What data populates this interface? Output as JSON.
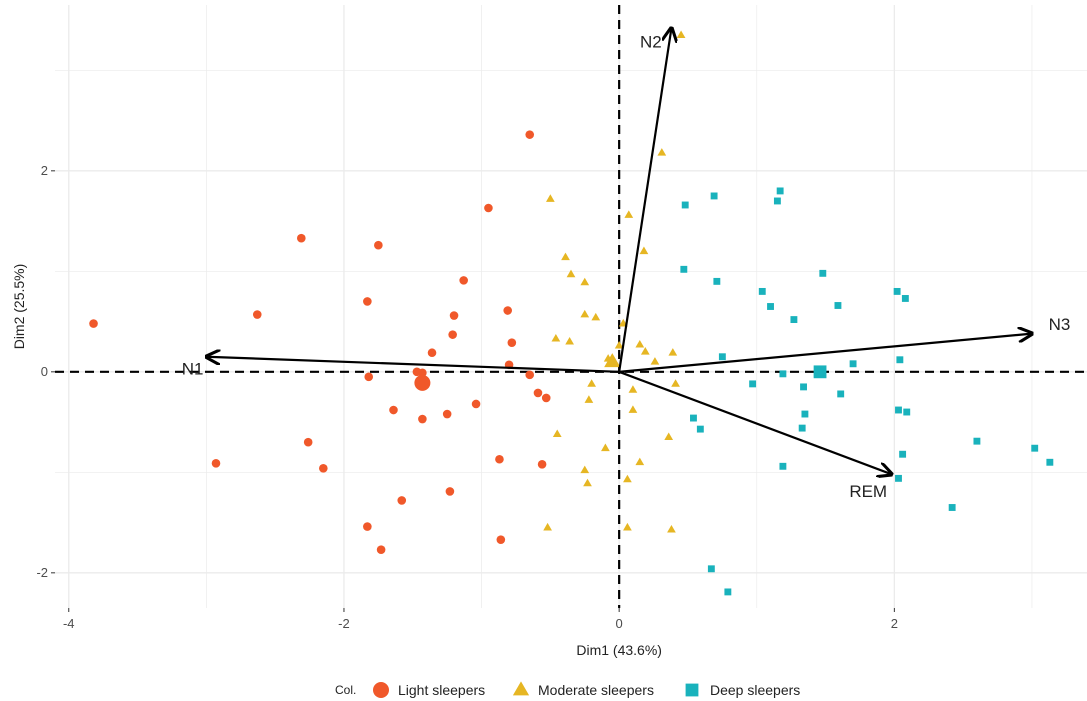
{
  "chart_data": {
    "type": "scatter",
    "subtype": "pca-biplot",
    "xlabel": "Dim1 (43.6%)",
    "ylabel": "Dim2 (25.5%)",
    "xlim": [
      -4.1,
      3.4
    ],
    "ylim": [
      -2.35,
      3.65
    ],
    "x_ticks": [
      -4,
      -2,
      0,
      2
    ],
    "x_tick_labels": [
      "-4",
      "-2",
      "0",
      "2"
    ],
    "y_ticks": [
      -2,
      0,
      2
    ],
    "y_tick_labels": [
      "-2",
      "0",
      "2"
    ],
    "grid": true,
    "reference_lines": {
      "x": 0,
      "y": 0,
      "style": "dashed"
    },
    "legend": {
      "title": "Col.",
      "position": "bottom",
      "entries": [
        "Light sleepers",
        "Moderate sleepers",
        "Deep sleepers"
      ]
    },
    "variables": [
      {
        "name": "N1",
        "x": -3.0,
        "y": 0.15,
        "label_x": -3.1,
        "label_y": 0.02
      },
      {
        "name": "N2",
        "x": 0.38,
        "y": 3.42,
        "label_x": 0.23,
        "label_y": 3.27
      },
      {
        "name": "N3",
        "x": 3.0,
        "y": 0.38,
        "label_x": 3.2,
        "label_y": 0.46
      },
      {
        "name": "REM",
        "x": 1.98,
        "y": -1.02,
        "label_x": 1.81,
        "label_y": -1.2
      }
    ],
    "series": [
      {
        "name": "Light sleepers",
        "color": "#f0582a",
        "shape": "circle",
        "centroid": [
          -1.43,
          -0.11
        ],
        "points": [
          [
            -3.82,
            0.48
          ],
          [
            -2.63,
            0.57
          ],
          [
            -2.31,
            1.33
          ],
          [
            -1.75,
            1.26
          ],
          [
            -1.83,
            0.7
          ],
          [
            -0.95,
            1.63
          ],
          [
            -0.65,
            2.36
          ],
          [
            -1.13,
            0.91
          ],
          [
            -1.2,
            0.56
          ],
          [
            -1.21,
            0.37
          ],
          [
            -0.81,
            0.61
          ],
          [
            -0.78,
            0.29
          ],
          [
            -1.36,
            0.19
          ],
          [
            -0.8,
            0.07
          ],
          [
            -1.47,
            0.0
          ],
          [
            -1.43,
            -0.01
          ],
          [
            -1.82,
            -0.05
          ],
          [
            -0.65,
            -0.03
          ],
          [
            -1.64,
            -0.38
          ],
          [
            -1.04,
            -0.32
          ],
          [
            -1.25,
            -0.42
          ],
          [
            -1.43,
            -0.47
          ],
          [
            -0.59,
            -0.21
          ],
          [
            -0.53,
            -0.26
          ],
          [
            -2.26,
            -0.7
          ],
          [
            -2.15,
            -0.96
          ],
          [
            -2.93,
            -0.91
          ],
          [
            -0.87,
            -0.87
          ],
          [
            -0.56,
            -0.92
          ],
          [
            -1.58,
            -1.28
          ],
          [
            -1.23,
            -1.19
          ],
          [
            -1.83,
            -1.54
          ],
          [
            -1.73,
            -1.77
          ],
          [
            -0.86,
            -1.67
          ]
        ]
      },
      {
        "name": "Moderate sleepers",
        "color": "#e6b623",
        "shape": "triangle",
        "centroid": [
          -0.05,
          0.1
        ],
        "points": [
          [
            0.45,
            3.35
          ],
          [
            0.31,
            2.18
          ],
          [
            -0.5,
            1.72
          ],
          [
            0.07,
            1.56
          ],
          [
            0.18,
            1.2
          ],
          [
            -0.39,
            1.14
          ],
          [
            -0.35,
            0.97
          ],
          [
            -0.25,
            0.89
          ],
          [
            -0.25,
            0.57
          ],
          [
            -0.17,
            0.54
          ],
          [
            0.03,
            0.48
          ],
          [
            -0.46,
            0.33
          ],
          [
            -0.36,
            0.3
          ],
          [
            0.15,
            0.27
          ],
          [
            0.19,
            0.2
          ],
          [
            0.39,
            0.19
          ],
          [
            0.0,
            0.26
          ],
          [
            -0.08,
            0.13
          ],
          [
            0.26,
            0.1
          ],
          [
            0.41,
            -0.12
          ],
          [
            -0.2,
            -0.12
          ],
          [
            -0.22,
            -0.28
          ],
          [
            0.1,
            -0.18
          ],
          [
            0.1,
            -0.38
          ],
          [
            -0.45,
            -0.62
          ],
          [
            0.36,
            -0.65
          ],
          [
            -0.1,
            -0.76
          ],
          [
            0.15,
            -0.9
          ],
          [
            -0.25,
            -0.98
          ],
          [
            -0.23,
            -1.11
          ],
          [
            0.06,
            -1.07
          ],
          [
            0.06,
            -1.55
          ],
          [
            -0.52,
            -1.55
          ],
          [
            0.38,
            -1.57
          ]
        ]
      },
      {
        "name": "Deep sleepers",
        "color": "#19b2bc",
        "shape": "square",
        "centroid": [
          1.46,
          0.0
        ],
        "points": [
          [
            0.48,
            1.66
          ],
          [
            0.69,
            1.75
          ],
          [
            1.17,
            1.8
          ],
          [
            1.15,
            1.7
          ],
          [
            0.47,
            1.02
          ],
          [
            0.71,
            0.9
          ],
          [
            1.04,
            0.8
          ],
          [
            1.1,
            0.65
          ],
          [
            1.48,
            0.98
          ],
          [
            1.59,
            0.66
          ],
          [
            1.27,
            0.52
          ],
          [
            2.02,
            0.8
          ],
          [
            2.08,
            0.73
          ],
          [
            0.75,
            0.15
          ],
          [
            1.7,
            0.08
          ],
          [
            2.04,
            0.12
          ],
          [
            1.19,
            -0.02
          ],
          [
            1.44,
            -0.02
          ],
          [
            0.97,
            -0.12
          ],
          [
            1.34,
            -0.15
          ],
          [
            1.61,
            -0.22
          ],
          [
            2.03,
            -0.38
          ],
          [
            2.09,
            -0.4
          ],
          [
            0.54,
            -0.46
          ],
          [
            0.59,
            -0.57
          ],
          [
            1.35,
            -0.42
          ],
          [
            1.33,
            -0.56
          ],
          [
            1.19,
            -0.94
          ],
          [
            2.06,
            -0.82
          ],
          [
            2.03,
            -1.06
          ],
          [
            2.6,
            -0.69
          ],
          [
            3.02,
            -0.76
          ],
          [
            3.13,
            -0.9
          ],
          [
            2.42,
            -1.35
          ],
          [
            0.67,
            -1.96
          ],
          [
            0.79,
            -2.19
          ]
        ]
      }
    ]
  }
}
